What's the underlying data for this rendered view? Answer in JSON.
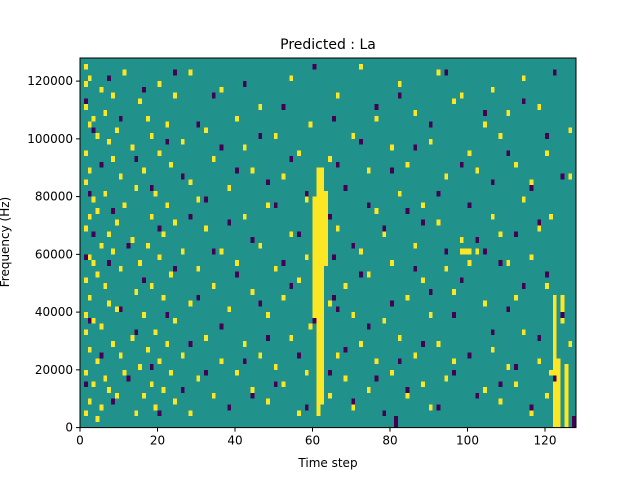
{
  "chart_data": {
    "type": "heatmap",
    "title": "Predicted : La",
    "xlabel": "Time step",
    "ylabel": "Frequency (Hz)",
    "xlim": [
      0,
      128
    ],
    "ylim": [
      0,
      128000
    ],
    "xticks": [
      0,
      20,
      40,
      60,
      80,
      100,
      120
    ],
    "yticks": [
      0,
      20000,
      40000,
      60000,
      80000,
      100000,
      120000
    ],
    "xtick_labels": [
      "0",
      "20",
      "40",
      "60",
      "80",
      "100",
      "120"
    ],
    "ytick_labels": [
      "0",
      "20000",
      "40000",
      "60000",
      "80000",
      "100000",
      "120000"
    ],
    "grid": false,
    "legend": "none",
    "colormap": "viridis",
    "colors": {
      "background": "#21918c",
      "high": "#fde725",
      "low": "#440154"
    },
    "cell_size": {
      "time_steps": 1,
      "frequency_hz": 2000
    },
    "notes_on_values": "Binary-like spectrogram mask: background value (teal), high value (yellow), low value (purple).",
    "high_columns": [
      {
        "t": 60,
        "f_from": 38000,
        "f_to": 78000
      },
      {
        "t": 61,
        "f_from": 4000,
        "f_to": 88000
      },
      {
        "t": 62,
        "f_from": 8000,
        "f_to": 88000
      },
      {
        "t": 63,
        "f_from": 56000,
        "f_to": 80000
      },
      {
        "t": 122,
        "f_from": 0,
        "f_to": 44000
      },
      {
        "t": 123,
        "f_from": 0,
        "f_to": 22000
      },
      {
        "t": 124,
        "f_from": 36000,
        "f_to": 44000
      },
      {
        "t": 125,
        "f_from": 0,
        "f_to": 20000
      }
    ],
    "high_cells": [
      [
        1,
        2
      ],
      [
        1,
        9
      ],
      [
        1,
        16
      ],
      [
        1,
        19
      ],
      [
        1,
        25
      ],
      [
        1,
        34
      ],
      [
        1,
        42
      ],
      [
        1,
        47
      ],
      [
        1,
        55
      ],
      [
        1,
        59
      ],
      [
        1,
        62
      ],
      [
        2,
        4
      ],
      [
        2,
        13
      ],
      [
        2,
        22
      ],
      [
        2,
        29
      ],
      [
        2,
        36
      ],
      [
        2,
        44
      ],
      [
        2,
        52
      ],
      [
        2,
        60
      ],
      [
        3,
        7
      ],
      [
        3,
        18
      ],
      [
        3,
        28
      ],
      [
        3,
        39
      ],
      [
        3,
        53
      ],
      [
        4,
        1
      ],
      [
        4,
        11
      ],
      [
        4,
        26
      ],
      [
        4,
        37
      ],
      [
        4,
        50
      ],
      [
        5,
        3
      ],
      [
        5,
        17
      ],
      [
        5,
        31
      ],
      [
        5,
        45
      ],
      [
        5,
        58
      ],
      [
        6,
        8
      ],
      [
        6,
        24
      ],
      [
        6,
        40
      ],
      [
        6,
        54
      ],
      [
        7,
        6
      ],
      [
        7,
        21
      ],
      [
        7,
        33
      ],
      [
        7,
        49
      ],
      [
        8,
        14
      ],
      [
        8,
        30
      ],
      [
        8,
        46
      ],
      [
        8,
        57
      ],
      [
        9,
        5
      ],
      [
        9,
        20
      ],
      [
        9,
        35
      ],
      [
        9,
        51
      ],
      [
        10,
        12
      ],
      [
        10,
        27
      ],
      [
        10,
        43
      ],
      [
        11,
        9
      ],
      [
        11,
        38
      ],
      [
        11,
        61
      ],
      [
        13,
        15
      ],
      [
        13,
        32
      ],
      [
        13,
        48
      ],
      [
        14,
        2
      ],
      [
        14,
        23
      ],
      [
        14,
        41
      ],
      [
        15,
        10
      ],
      [
        15,
        28
      ],
      [
        15,
        56
      ],
      [
        16,
        5
      ],
      [
        16,
        19
      ],
      [
        16,
        44
      ],
      [
        17,
        13
      ],
      [
        17,
        31
      ],
      [
        17,
        53
      ],
      [
        18,
        7
      ],
      [
        18,
        24
      ],
      [
        18,
        36
      ],
      [
        18,
        50
      ],
      [
        19,
        3
      ],
      [
        19,
        16
      ],
      [
        19,
        40
      ],
      [
        20,
        11
      ],
      [
        20,
        29
      ],
      [
        20,
        47
      ],
      [
        20,
        59
      ],
      [
        21,
        6
      ],
      [
        21,
        22
      ],
      [
        21,
        33
      ],
      [
        22,
        14
      ],
      [
        22,
        38
      ],
      [
        22,
        52
      ],
      [
        23,
        9
      ],
      [
        23,
        26
      ],
      [
        23,
        45
      ],
      [
        24,
        4
      ],
      [
        24,
        18
      ],
      [
        24,
        35
      ],
      [
        24,
        57
      ],
      [
        26,
        12
      ],
      [
        26,
        30
      ],
      [
        26,
        49
      ],
      [
        28,
        2
      ],
      [
        28,
        21
      ],
      [
        28,
        42
      ],
      [
        28,
        61
      ],
      [
        30,
        8
      ],
      [
        30,
        27
      ],
      [
        30,
        39
      ],
      [
        32,
        15
      ],
      [
        32,
        34
      ],
      [
        32,
        51
      ],
      [
        34,
        5
      ],
      [
        34,
        24
      ],
      [
        34,
        46
      ],
      [
        36,
        11
      ],
      [
        36,
        30
      ],
      [
        36,
        58
      ],
      [
        38,
        3
      ],
      [
        38,
        20
      ],
      [
        38,
        41
      ],
      [
        40,
        9
      ],
      [
        40,
        28
      ],
      [
        40,
        53
      ],
      [
        42,
        14
      ],
      [
        42,
        36
      ],
      [
        42,
        48
      ],
      [
        44,
        6
      ],
      [
        44,
        23
      ],
      [
        44,
        44
      ],
      [
        46,
        12
      ],
      [
        46,
        31
      ],
      [
        46,
        55
      ],
      [
        48,
        4
      ],
      [
        48,
        19
      ],
      [
        48,
        38
      ],
      [
        50,
        10
      ],
      [
        50,
        27
      ],
      [
        50,
        50
      ],
      [
        52,
        7
      ],
      [
        52,
        22
      ],
      [
        52,
        43
      ],
      [
        54,
        15
      ],
      [
        54,
        33
      ],
      [
        54,
        60
      ],
      [
        56,
        2
      ],
      [
        56,
        25
      ],
      [
        56,
        47
      ],
      [
        58,
        9
      ],
      [
        58,
        29
      ],
      [
        58,
        39
      ],
      [
        59,
        17
      ],
      [
        59,
        52
      ],
      [
        64,
        5
      ],
      [
        64,
        21
      ],
      [
        64,
        46
      ],
      [
        66,
        12
      ],
      [
        66,
        34
      ],
      [
        66,
        57
      ],
      [
        68,
        8
      ],
      [
        68,
        24
      ],
      [
        68,
        41
      ],
      [
        70,
        3
      ],
      [
        70,
        19
      ],
      [
        70,
        50
      ],
      [
        72,
        14
      ],
      [
        72,
        30
      ],
      [
        72,
        62
      ],
      [
        74,
        6
      ],
      [
        74,
        26
      ],
      [
        74,
        44
      ],
      [
        76,
        11
      ],
      [
        76,
        37
      ],
      [
        76,
        53
      ],
      [
        78,
        2
      ],
      [
        78,
        18
      ],
      [
        78,
        33
      ],
      [
        80,
        9
      ],
      [
        80,
        28
      ],
      [
        80,
        48
      ],
      [
        82,
        15
      ],
      [
        82,
        40
      ],
      [
        82,
        59
      ],
      [
        84,
        5
      ],
      [
        84,
        22
      ],
      [
        84,
        45
      ],
      [
        86,
        12
      ],
      [
        86,
        31
      ],
      [
        86,
        54
      ],
      [
        88,
        7
      ],
      [
        88,
        25
      ],
      [
        88,
        38
      ],
      [
        90,
        3
      ],
      [
        90,
        19
      ],
      [
        90,
        49
      ],
      [
        92,
        14
      ],
      [
        92,
        35
      ],
      [
        92,
        61
      ],
      [
        94,
        8
      ],
      [
        94,
        27
      ],
      [
        94,
        43
      ],
      [
        96,
        11
      ],
      [
        96,
        23
      ],
      [
        96,
        56
      ],
      [
        98,
        30
      ],
      [
        98,
        32
      ],
      [
        98,
        57
      ],
      [
        99,
        30
      ],
      [
        100,
        30
      ],
      [
        100,
        28
      ],
      [
        100,
        47
      ],
      [
        102,
        30
      ],
      [
        102,
        44
      ],
      [
        104,
        6
      ],
      [
        104,
        21
      ],
      [
        104,
        52
      ],
      [
        106,
        13
      ],
      [
        106,
        36
      ],
      [
        106,
        58
      ],
      [
        108,
        4
      ],
      [
        108,
        33
      ],
      [
        108,
        50
      ],
      [
        110,
        10
      ],
      [
        110,
        28
      ],
      [
        110,
        54
      ],
      [
        112,
        7
      ],
      [
        112,
        22
      ],
      [
        112,
        45
      ],
      [
        114,
        16
      ],
      [
        114,
        39
      ],
      [
        114,
        60
      ],
      [
        116,
        2
      ],
      [
        116,
        29
      ],
      [
        116,
        42
      ],
      [
        118,
        11
      ],
      [
        118,
        34
      ],
      [
        118,
        55
      ],
      [
        120,
        5
      ],
      [
        120,
        24
      ],
      [
        120,
        47
      ],
      [
        121,
        9
      ],
      [
        121,
        36
      ],
      [
        126,
        14
      ],
      [
        126,
        43
      ],
      [
        126,
        51
      ]
    ],
    "low_cells": [
      [
        1,
        7
      ],
      [
        1,
        29
      ],
      [
        1,
        56
      ],
      [
        2,
        40
      ],
      [
        2,
        18
      ],
      [
        3,
        51
      ],
      [
        3,
        33
      ],
      [
        5,
        12
      ],
      [
        5,
        45
      ],
      [
        7,
        28
      ],
      [
        7,
        60
      ],
      [
        8,
        37
      ],
      [
        8,
        4
      ],
      [
        10,
        20
      ],
      [
        10,
        53
      ],
      [
        12,
        31
      ],
      [
        12,
        8
      ],
      [
        14,
        46
      ],
      [
        14,
        16
      ],
      [
        16,
        25
      ],
      [
        16,
        58
      ],
      [
        18,
        10
      ],
      [
        18,
        41
      ],
      [
        20,
        34
      ],
      [
        20,
        2
      ],
      [
        22,
        49
      ],
      [
        22,
        19
      ],
      [
        24,
        27
      ],
      [
        24,
        61
      ],
      [
        26,
        6
      ],
      [
        26,
        43
      ],
      [
        28,
        36
      ],
      [
        28,
        14
      ],
      [
        30,
        52
      ],
      [
        30,
        22
      ],
      [
        32,
        9
      ],
      [
        32,
        39
      ],
      [
        34,
        30
      ],
      [
        34,
        57
      ],
      [
        36,
        17
      ],
      [
        36,
        48
      ],
      [
        38,
        3
      ],
      [
        38,
        35
      ],
      [
        40,
        44
      ],
      [
        40,
        26
      ],
      [
        42,
        11
      ],
      [
        42,
        59
      ],
      [
        44,
        32
      ],
      [
        44,
        5
      ],
      [
        46,
        50
      ],
      [
        46,
        21
      ],
      [
        48,
        15
      ],
      [
        48,
        42
      ],
      [
        50,
        38
      ],
      [
        50,
        7
      ],
      [
        52,
        55
      ],
      [
        52,
        28
      ],
      [
        54,
        24
      ],
      [
        54,
        46
      ],
      [
        56,
        12
      ],
      [
        56,
        33
      ],
      [
        58,
        40
      ],
      [
        58,
        3
      ],
      [
        60,
        18
      ],
      [
        60,
        62
      ],
      [
        64,
        9
      ],
      [
        64,
        36
      ],
      [
        65,
        22
      ],
      [
        65,
        29
      ],
      [
        65,
        53
      ],
      [
        66,
        20
      ],
      [
        66,
        45
      ],
      [
        68,
        13
      ],
      [
        68,
        41
      ],
      [
        70,
        31
      ],
      [
        70,
        4
      ],
      [
        72,
        49
      ],
      [
        72,
        26
      ],
      [
        74,
        17
      ],
      [
        74,
        38
      ],
      [
        76,
        8
      ],
      [
        76,
        55
      ],
      [
        78,
        34
      ],
      [
        78,
        2
      ],
      [
        80,
        21
      ],
      [
        80,
        44
      ],
      [
        81,
        0
      ],
      [
        81,
        1
      ],
      [
        82,
        11
      ],
      [
        82,
        57
      ],
      [
        84,
        37
      ],
      [
        84,
        6
      ],
      [
        86,
        27
      ],
      [
        86,
        48
      ],
      [
        88,
        14
      ],
      [
        88,
        35
      ],
      [
        90,
        52
      ],
      [
        90,
        23
      ],
      [
        92,
        3
      ],
      [
        92,
        40
      ],
      [
        94,
        30
      ],
      [
        94,
        61
      ],
      [
        96,
        9
      ],
      [
        96,
        19
      ],
      [
        98,
        45
      ],
      [
        98,
        25
      ],
      [
        100,
        12
      ],
      [
        100,
        38
      ],
      [
        102,
        32
      ],
      [
        102,
        5
      ],
      [
        104,
        30
      ],
      [
        104,
        54
      ],
      [
        106,
        16
      ],
      [
        106,
        42
      ],
      [
        108,
        28
      ],
      [
        108,
        7
      ],
      [
        110,
        47
      ],
      [
        110,
        20
      ],
      [
        112,
        33
      ],
      [
        112,
        10
      ],
      [
        114,
        56
      ],
      [
        114,
        24
      ],
      [
        116,
        3
      ],
      [
        116,
        41
      ],
      [
        118,
        15
      ],
      [
        118,
        35
      ],
      [
        120,
        50
      ],
      [
        120,
        26
      ],
      [
        122,
        61
      ],
      [
        122,
        8
      ],
      [
        124,
        19
      ],
      [
        124,
        43
      ],
      [
        127,
        0
      ],
      [
        127,
        1
      ]
    ]
  }
}
